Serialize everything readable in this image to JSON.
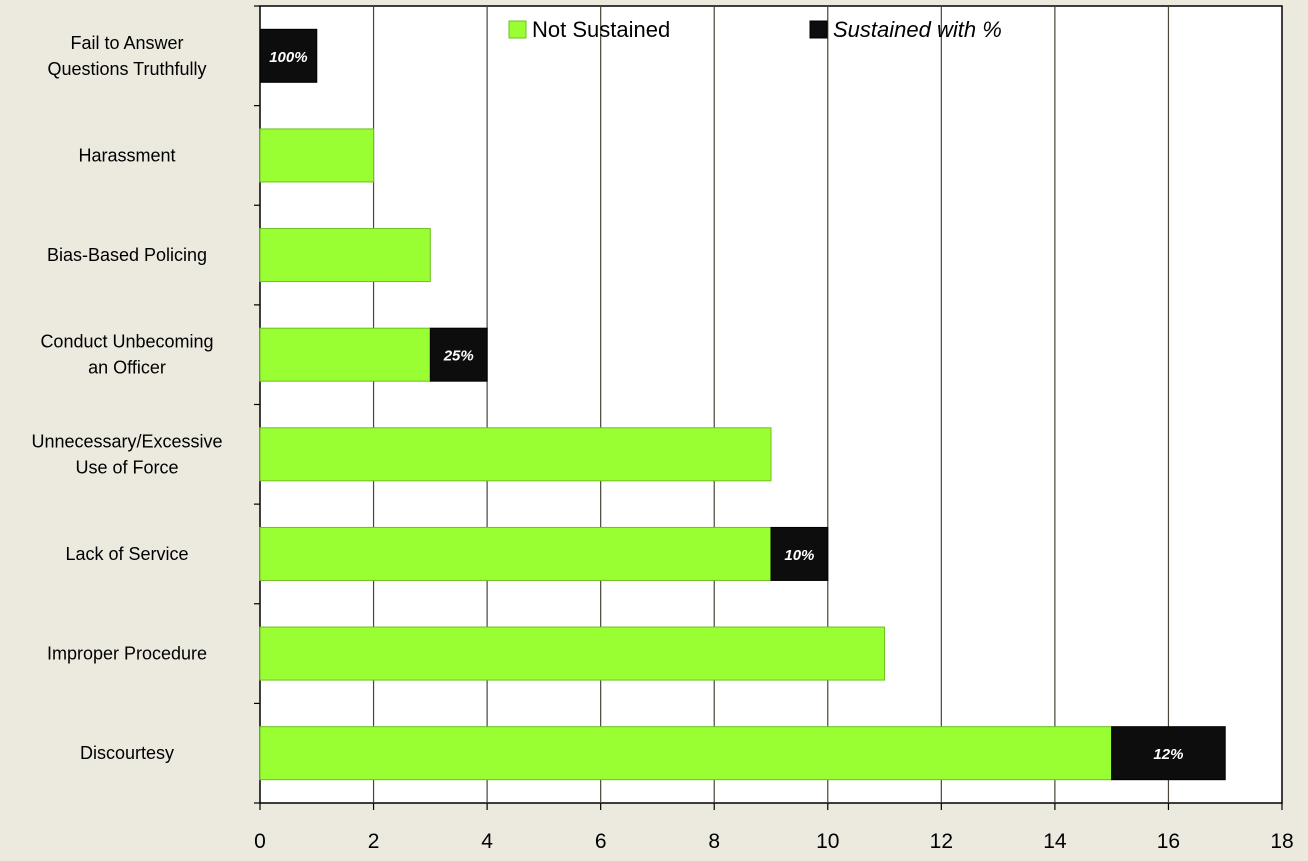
{
  "chart_data": {
    "type": "bar",
    "orientation": "horizontal",
    "stacked": true,
    "categories": [
      [
        "Fail to Answer",
        "Questions Truthfully"
      ],
      [
        "Harassment"
      ],
      [
        "Bias-Based Policing"
      ],
      [
        "Conduct Unbecoming",
        "an Officer"
      ],
      [
        "Unnecessary/Excessive",
        "Use of Force"
      ],
      [
        "Lack of Service"
      ],
      [
        "Improper Procedure"
      ],
      [
        "Discourtesy"
      ]
    ],
    "series": [
      {
        "name": "Not Sustained",
        "color": "#99ff33",
        "values": [
          0,
          2,
          3,
          3,
          9,
          9,
          11,
          15
        ]
      },
      {
        "name": "Sustained with %",
        "color": "#0d0d0d",
        "values": [
          1,
          0,
          0,
          1,
          0,
          1,
          0,
          2
        ]
      }
    ],
    "sustained_pct_labels": [
      "100%",
      "",
      "",
      "25%",
      "",
      "10%",
      "",
      "12%"
    ],
    "xlim": [
      0,
      18
    ],
    "xticks": [
      0,
      2,
      4,
      6,
      8,
      10,
      12,
      14,
      16,
      18
    ],
    "grid": true,
    "legend": "top"
  }
}
